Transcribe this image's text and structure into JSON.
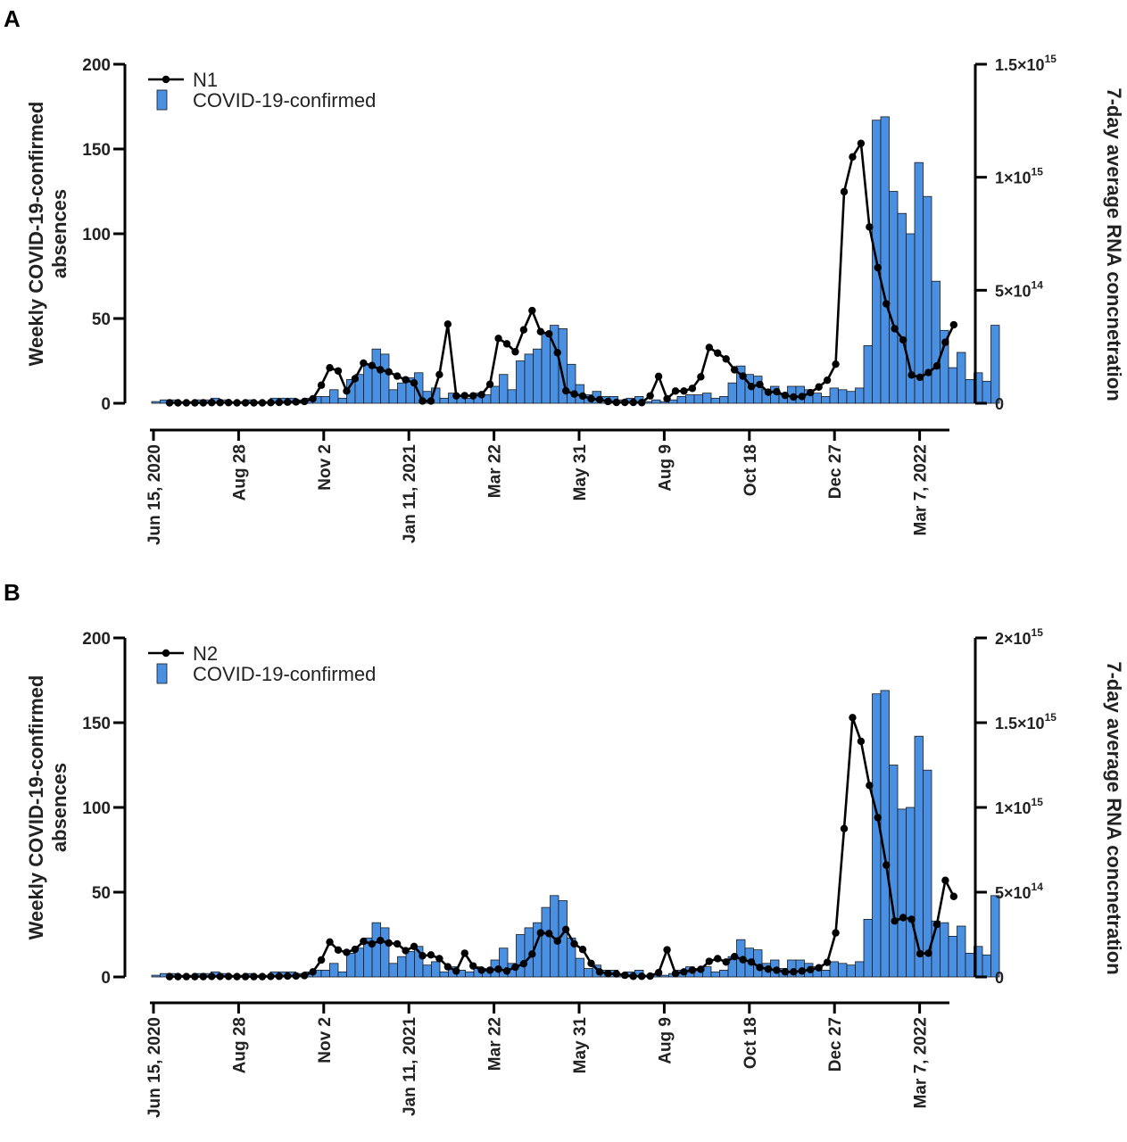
{
  "chart_data": [
    {
      "panel": "A",
      "type": "bar+line",
      "ylabel_left": [
        "Weekly COVID-19-confirmed",
        "absences"
      ],
      "ylabel_right": "7-day average RNA concnetration",
      "yticks_left": [
        "0",
        "50",
        "100",
        "150",
        "200"
      ],
      "ylim_left": [
        0,
        200
      ],
      "yticks_right": [
        {
          "base": "0",
          "exp": ""
        },
        {
          "base": "5×10",
          "exp": "14"
        },
        {
          "base": "1×10",
          "exp": "15"
        },
        {
          "base": "1.5×10",
          "exp": "15"
        }
      ],
      "ylim_right": [
        0,
        1500000000000000.0
      ],
      "xticks": [
        "Jun 15, 2020",
        "Aug 28",
        "Nov 2",
        "Jan 11, 2021",
        "Mar 22",
        "May 31",
        "Aug 9",
        "Oct 18",
        "Dec 27",
        "Mar 7, 2022"
      ],
      "grid": false,
      "legend_position": "top-left",
      "bar_series": {
        "name": "COVID-19-confirmed",
        "color": "#4a90e2",
        "values": [
          1,
          2,
          2,
          1,
          1,
          2,
          2,
          3,
          2,
          1,
          1,
          2,
          1,
          1,
          3,
          3,
          3,
          2,
          3,
          4,
          4,
          8,
          3,
          14,
          17,
          23,
          32,
          29,
          8,
          12,
          15,
          18,
          7,
          9,
          3,
          6,
          4,
          3,
          6,
          5,
          10,
          17,
          8,
          25,
          29,
          32,
          41,
          46,
          44,
          23,
          11,
          5,
          7,
          4,
          4,
          2,
          3,
          4,
          1,
          2,
          1,
          2,
          4,
          5,
          5,
          6,
          3,
          4,
          12,
          22,
          17,
          16,
          8,
          10,
          5,
          10,
          10,
          8,
          6,
          4,
          9,
          8,
          7,
          9,
          34,
          167,
          169,
          125,
          112,
          100,
          142,
          122,
          72,
          43,
          21,
          30,
          14,
          18,
          13,
          46
        ]
      },
      "line_series": {
        "name": "N1",
        "color": "#000000",
        "values": [
          2000000000000.0,
          2000000000000.0,
          2000000000000.0,
          2000000000000.0,
          2000000000000.0,
          3000000000000.0,
          3000000000000.0,
          3000000000000.0,
          2000000000000.0,
          2000000000000.0,
          2000000000000.0,
          2000000000000.0,
          3000000000000.0,
          4000000000000.0,
          5000000000000.0,
          6000000000000.0,
          8000000000000.0,
          20000000000000.0,
          80000000000000.0,
          157000000000000.0,
          143000000000000.0,
          54000000000000.0,
          109000000000000.0,
          178000000000000.0,
          167000000000000.0,
          148000000000000.0,
          139000000000000.0,
          120000000000000.0,
          104000000000000.0,
          90000000000000.0,
          10000000000000.0,
          10000000000000.0,
          127000000000000.0,
          350000000000000.0,
          33000000000000.0,
          34000000000000.0,
          33000000000000.0,
          38000000000000.0,
          84000000000000.0,
          287000000000000.0,
          263000000000000.0,
          228000000000000.0,
          325000000000000.0,
          410000000000000.0,
          317000000000000.0,
          307000000000000.0,
          224000000000000.0,
          55000000000000.0,
          41000000000000.0,
          32000000000000.0,
          20000000000000.0,
          16000000000000.0,
          8000000000000.0,
          4000000000000.0,
          4000000000000.0,
          4000000000000.0,
          3000000000000.0,
          33000000000000.0,
          119000000000000.0,
          20000000000000.0,
          54000000000000.0,
          54000000000000.0,
          66000000000000.0,
          117000000000000.0,
          247000000000000.0,
          222000000000000.0,
          196000000000000.0,
          148000000000000.0,
          120000000000000.0,
          74000000000000.0,
          83000000000000.0,
          49000000000000.0,
          51000000000000.0,
          35000000000000.0,
          28000000000000.0,
          30000000000000.0,
          47000000000000.0,
          72000000000000.0,
          102000000000000.0,
          173000000000000.0,
          936000000000000.0,
          1090000000000000.0,
          1150000000000000.0,
          780000000000000.0,
          600000000000000.0,
          440000000000000.0,
          330000000000000.0,
          280000000000000.0,
          125000000000000.0,
          115000000000000.0,
          136000000000000.0,
          165000000000000.0,
          270000000000000.0,
          347000000000000.0
        ]
      }
    },
    {
      "panel": "B",
      "type": "bar+line",
      "ylabel_left": [
        "Weekly COVID-19-confirmed",
        "absences"
      ],
      "ylabel_right": "7-day average RNA concnetration",
      "yticks_left": [
        "0",
        "50",
        "100",
        "150",
        "200"
      ],
      "ylim_left": [
        0,
        200
      ],
      "yticks_right": [
        {
          "base": "0",
          "exp": ""
        },
        {
          "base": "5×10",
          "exp": "14"
        },
        {
          "base": "1×10",
          "exp": "15"
        },
        {
          "base": "1.5×10",
          "exp": "15"
        },
        {
          "base": "2×10",
          "exp": "15"
        }
      ],
      "ylim_right": [
        0,
        2000000000000000.0
      ],
      "xticks": [
        "Jun 15, 2020",
        "Aug 28",
        "Nov 2",
        "Jan 11, 2021",
        "Mar 22",
        "May 31",
        "Aug 9",
        "Oct 18",
        "Dec 27",
        "Mar 7, 2022"
      ],
      "grid": false,
      "legend_position": "top-left",
      "bar_series": {
        "name": "COVID-19-confirmed",
        "color": "#4a90e2",
        "values": [
          1,
          2,
          2,
          1,
          1,
          2,
          2,
          3,
          2,
          1,
          1,
          2,
          1,
          1,
          3,
          3,
          3,
          2,
          3,
          4,
          4,
          8,
          3,
          14,
          17,
          23,
          32,
          29,
          8,
          12,
          15,
          18,
          7,
          9,
          3,
          6,
          4,
          3,
          6,
          5,
          10,
          17,
          8,
          25,
          29,
          32,
          41,
          48,
          45,
          23,
          11,
          5,
          7,
          4,
          4,
          2,
          3,
          4,
          1,
          2,
          1,
          2,
          4,
          6,
          5,
          6,
          3,
          4,
          12,
          22,
          17,
          16,
          8,
          10,
          5,
          10,
          10,
          8,
          6,
          4,
          9,
          8,
          7,
          9,
          34,
          167,
          169,
          125,
          99,
          100,
          142,
          122,
          33,
          32,
          24,
          30,
          14,
          18,
          13,
          48
        ]
      },
      "line_series": {
        "name": "N2",
        "color": "#000000",
        "values": [
          2000000000000.0,
          2000000000000.0,
          2000000000000.0,
          2000000000000.0,
          2000000000000.0,
          3000000000000.0,
          3000000000000.0,
          3000000000000.0,
          2000000000000.0,
          2000000000000.0,
          2000000000000.0,
          2000000000000.0,
          3000000000000.0,
          4000000000000.0,
          5000000000000.0,
          6000000000000.0,
          8000000000000.0,
          30000000000000.0,
          100000000000000.0,
          206000000000000.0,
          159000000000000.0,
          145000000000000.0,
          163000000000000.0,
          210000000000000.0,
          195000000000000.0,
          215000000000000.0,
          200000000000000.0,
          195000000000000.0,
          155000000000000.0,
          180000000000000.0,
          125000000000000.0,
          130000000000000.0,
          108000000000000.0,
          60000000000000.0,
          35000000000000.0,
          140000000000000.0,
          65000000000000.0,
          40000000000000.0,
          40000000000000.0,
          46000000000000.0,
          35000000000000.0,
          58000000000000.0,
          78000000000000.0,
          135000000000000.0,
          260000000000000.0,
          256000000000000.0,
          212000000000000.0,
          280000000000000.0,
          195000000000000.0,
          162000000000000.0,
          80000000000000.0,
          30000000000000.0,
          20000000000000.0,
          18000000000000.0,
          10000000000000.0,
          4000000000000.0,
          4000000000000.0,
          5000000000000.0,
          25000000000000.0,
          160000000000000.0,
          20000000000000.0,
          30000000000000.0,
          40000000000000.0,
          45000000000000.0,
          92000000000000.0,
          108000000000000.0,
          88000000000000.0,
          120000000000000.0,
          102000000000000.0,
          88000000000000.0,
          56000000000000.0,
          46000000000000.0,
          40000000000000.0,
          30000000000000.0,
          30000000000000.0,
          35000000000000.0,
          43000000000000.0,
          54000000000000.0,
          86000000000000.0,
          260000000000000.0,
          875000000000000.0,
          1530000000000000.0,
          1390000000000000.0,
          1130000000000000.0,
          940000000000000.0,
          660000000000000.0,
          330000000000000.0,
          350000000000000.0,
          340000000000000.0,
          137000000000000.0,
          140000000000000.0,
          310000000000000.0,
          570000000000000.0,
          475000000000000.0
        ]
      }
    }
  ]
}
